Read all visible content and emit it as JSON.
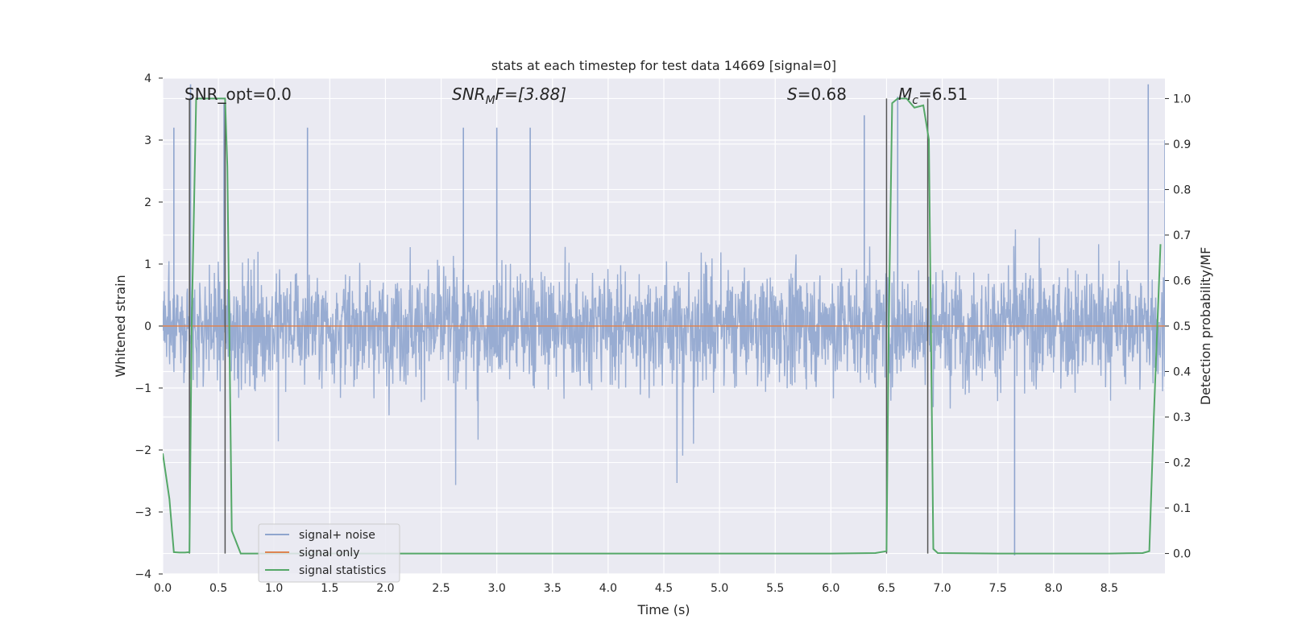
{
  "chart_data": {
    "type": "line",
    "title": "stats at each timestep for test data 14669 [signal=0]",
    "xlabel": "Time (s)",
    "ylabel_left": "Whitened strain",
    "ylabel_right": "Detection probability/MF",
    "xlim": [
      0.0,
      9.0
    ],
    "ylim_left": [
      -4.0,
      4.0
    ],
    "ylim_right": [
      -0.045,
      1.045
    ],
    "xticks": [
      "0.0",
      "0.5",
      "1.0",
      "1.5",
      "2.0",
      "2.5",
      "3.0",
      "3.5",
      "4.0",
      "4.5",
      "5.0",
      "5.5",
      "6.0",
      "6.5",
      "7.0",
      "7.5",
      "8.0",
      "8.5"
    ],
    "yticks_left": [
      "4",
      "3",
      "2",
      "1",
      "0",
      "−1",
      "−2",
      "−3",
      "−4"
    ],
    "yticks_right": [
      "1.0",
      "0.9",
      "0.8",
      "0.7",
      "0.6",
      "0.5",
      "0.4",
      "0.3",
      "0.2",
      "0.1",
      "0.0"
    ],
    "grid": true,
    "legend_position": "lower-left",
    "annotations": {
      "snr_opt": "SNR_opt=0.0",
      "snr_mf_sym": "SNR",
      "snr_mf_sub": "M",
      "snr_mf_rest": "F=[3.88]",
      "s_sym": "S",
      "s_rest": "=0.68",
      "mc_sym": "M",
      "mc_sub": "c",
      "mc_rest": "=6.51"
    },
    "series": [
      {
        "name": "signal+ noise",
        "color": "#8fa5ce",
        "axis": "left",
        "description": "noisy whitened strain, spans roughly ±1.6 with peaks to ±3.9",
        "envelope": [
          1.6,
          -1.6
        ],
        "peaks_x": [
          0.1,
          0.25,
          0.55,
          1.3,
          2.7,
          3.0,
          3.3,
          6.3,
          6.6,
          7.65,
          8.85,
          9.0
        ],
        "peaks_y": [
          3.2,
          3.9,
          3.6,
          3.2,
          3.2,
          3.2,
          3.2,
          3.4,
          3.7,
          -3.7,
          3.9,
          3.0
        ]
      },
      {
        "name": "signal only",
        "color": "#dd8452",
        "axis": "left",
        "x": [
          0.0,
          9.0
        ],
        "y": [
          0.0,
          0.0
        ]
      },
      {
        "name": "signal statistics",
        "color": "#55a868",
        "axis": "right",
        "x": [
          0.0,
          0.06,
          0.1,
          0.15,
          0.2,
          0.24,
          0.26,
          0.3,
          0.4,
          0.5,
          0.56,
          0.58,
          0.62,
          0.7,
          1.0,
          2.0,
          3.0,
          4.0,
          5.0,
          6.0,
          6.4,
          6.5,
          6.52,
          6.55,
          6.6,
          6.68,
          6.75,
          6.83,
          6.88,
          6.92,
          6.96,
          7.5,
          8.0,
          8.5,
          8.8,
          8.86,
          8.9,
          8.96
        ],
        "y": [
          0.22,
          0.12,
          0.003,
          0.002,
          0.002,
          0.003,
          0.5,
          1.0,
          1.0,
          1.0,
          1.0,
          0.85,
          0.05,
          0.0,
          0.0,
          0.0,
          0.0,
          0.0,
          0.0,
          0.0,
          0.001,
          0.005,
          0.5,
          0.99,
          1.0,
          1.0,
          0.98,
          0.985,
          0.91,
          0.01,
          0.001,
          0.0,
          0.0,
          0.0,
          0.001,
          0.005,
          0.3,
          0.68
        ]
      }
    ],
    "vlines": {
      "color": "#555555",
      "x": [
        0.24,
        0.56,
        6.5,
        6.87
      ],
      "ymin_right": 0.0,
      "ymax_right": 1.0
    }
  }
}
